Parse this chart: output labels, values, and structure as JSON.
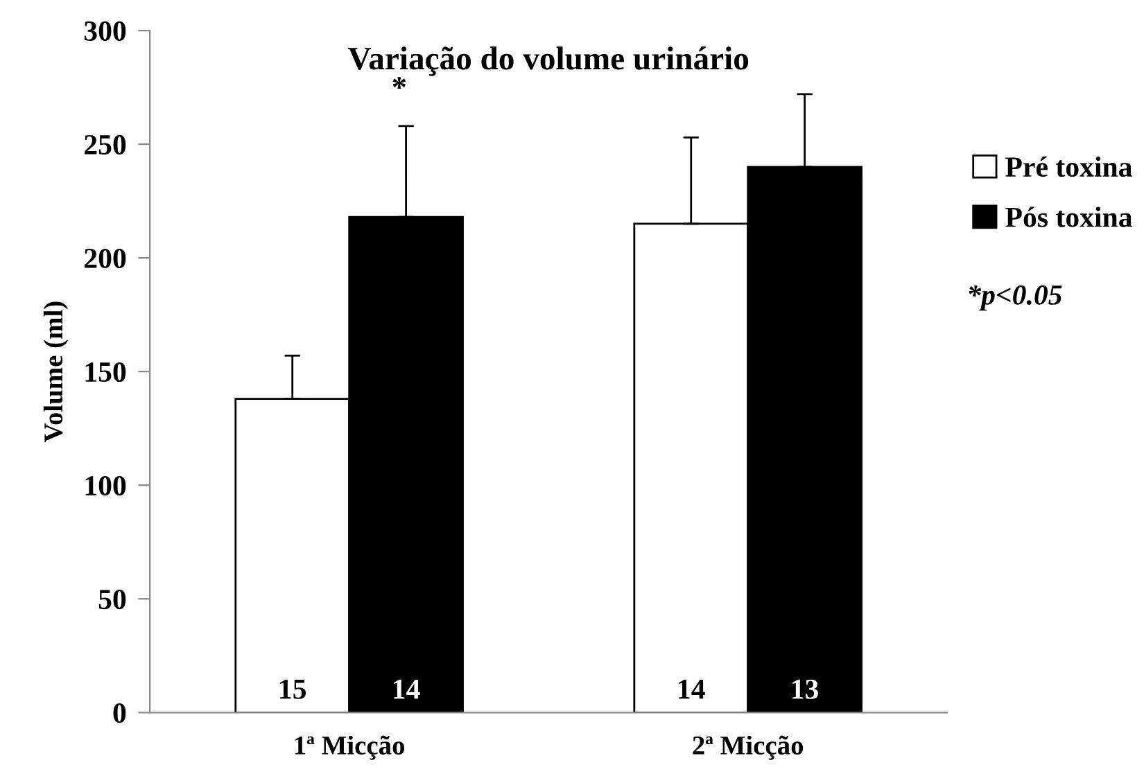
{
  "chart_data": {
    "type": "bar",
    "title": "Variação do volume urinário",
    "ylabel": "Volume (ml)",
    "categories": [
      "1ª Micção",
      "2ª Micção"
    ],
    "series": [
      {
        "name": "Pré toxina",
        "color": "#ffffff",
        "values": [
          138,
          215
        ],
        "errors": [
          [
            138,
            157
          ],
          [
            215,
            253
          ]
        ]
      },
      {
        "name": "Pós toxina",
        "color": "#000000",
        "values": [
          218,
          240
        ],
        "errors": [
          [
            218,
            258
          ],
          [
            240,
            272
          ]
        ]
      }
    ],
    "ylim": [
      0,
      300
    ],
    "yticks": [
      0,
      50,
      100,
      150,
      200,
      250,
      300
    ],
    "grid": false,
    "legend": "right",
    "annotations": [
      {
        "text": "15",
        "x": "1ª Micção",
        "y": 0
      },
      {
        "text": "14",
        "x": "1ª Micção",
        "y": 0
      },
      "*",
      {
        "text": "14",
        "x": "2ª Micção",
        "y": 0
      },
      {
        "text": "13",
        "x": "2ª Micção",
        "y": 0
      },
      "*p<0.05"
    ]
  }
}
